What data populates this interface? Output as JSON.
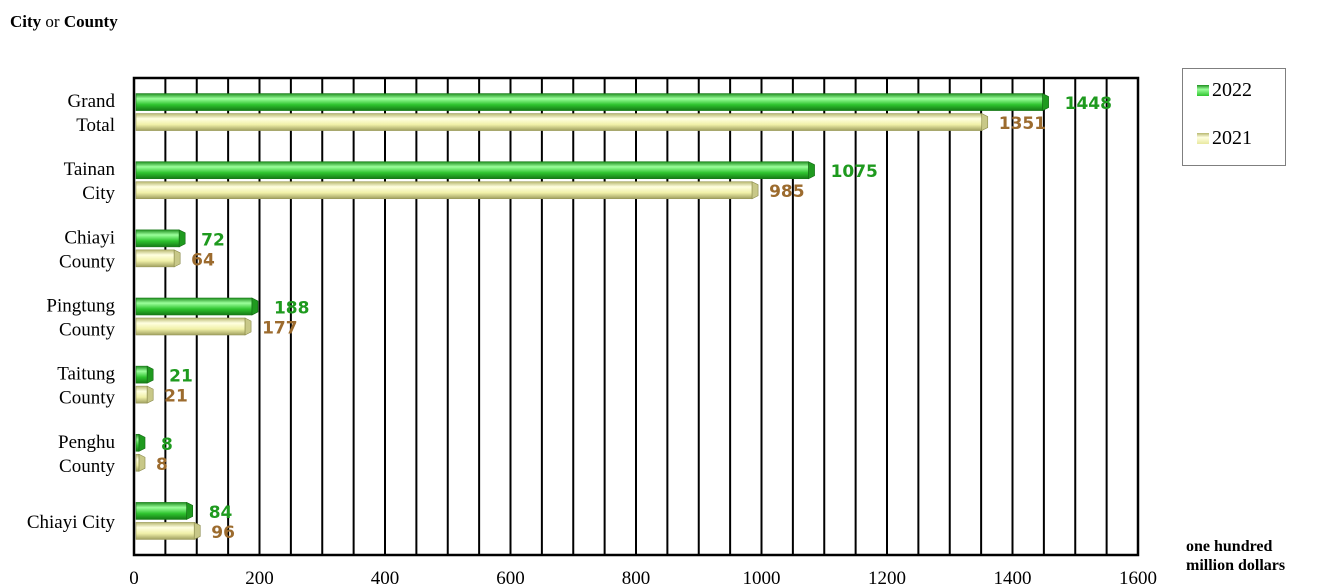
{
  "chart_data": {
    "type": "bar",
    "orientation": "horizontal",
    "y_axis_title": {
      "main": "City",
      "connector": "or",
      "tail": "County"
    },
    "xlabel": [
      "one hundred",
      "million dollars"
    ],
    "xlim": [
      0,
      1600
    ],
    "x_ticks": [
      "0",
      "200",
      "400",
      "600",
      "800",
      "1000",
      "1200",
      "1400",
      "1600"
    ],
    "minor_grid_step": 50,
    "grid": true,
    "legend_position": "right-top",
    "categories": [
      [
        "Grand",
        "Total"
      ],
      [
        "Tainan",
        "City"
      ],
      [
        "Chiayi",
        "County"
      ],
      [
        "Pingtung",
        "County"
      ],
      [
        "Taitung",
        "County"
      ],
      [
        "Penghu",
        "County"
      ],
      [
        "Chiayi City"
      ]
    ],
    "series": [
      {
        "name": "2022",
        "color": "#33cc33",
        "label_color": "#1e9a1e",
        "values": [
          1448,
          1075,
          72,
          188,
          21,
          8,
          84
        ]
      },
      {
        "name": "2021",
        "color": "#f0f0a0",
        "label_color": "#9c6b2e",
        "values": [
          1351,
          985,
          64,
          177,
          21,
          8,
          96
        ]
      }
    ]
  }
}
